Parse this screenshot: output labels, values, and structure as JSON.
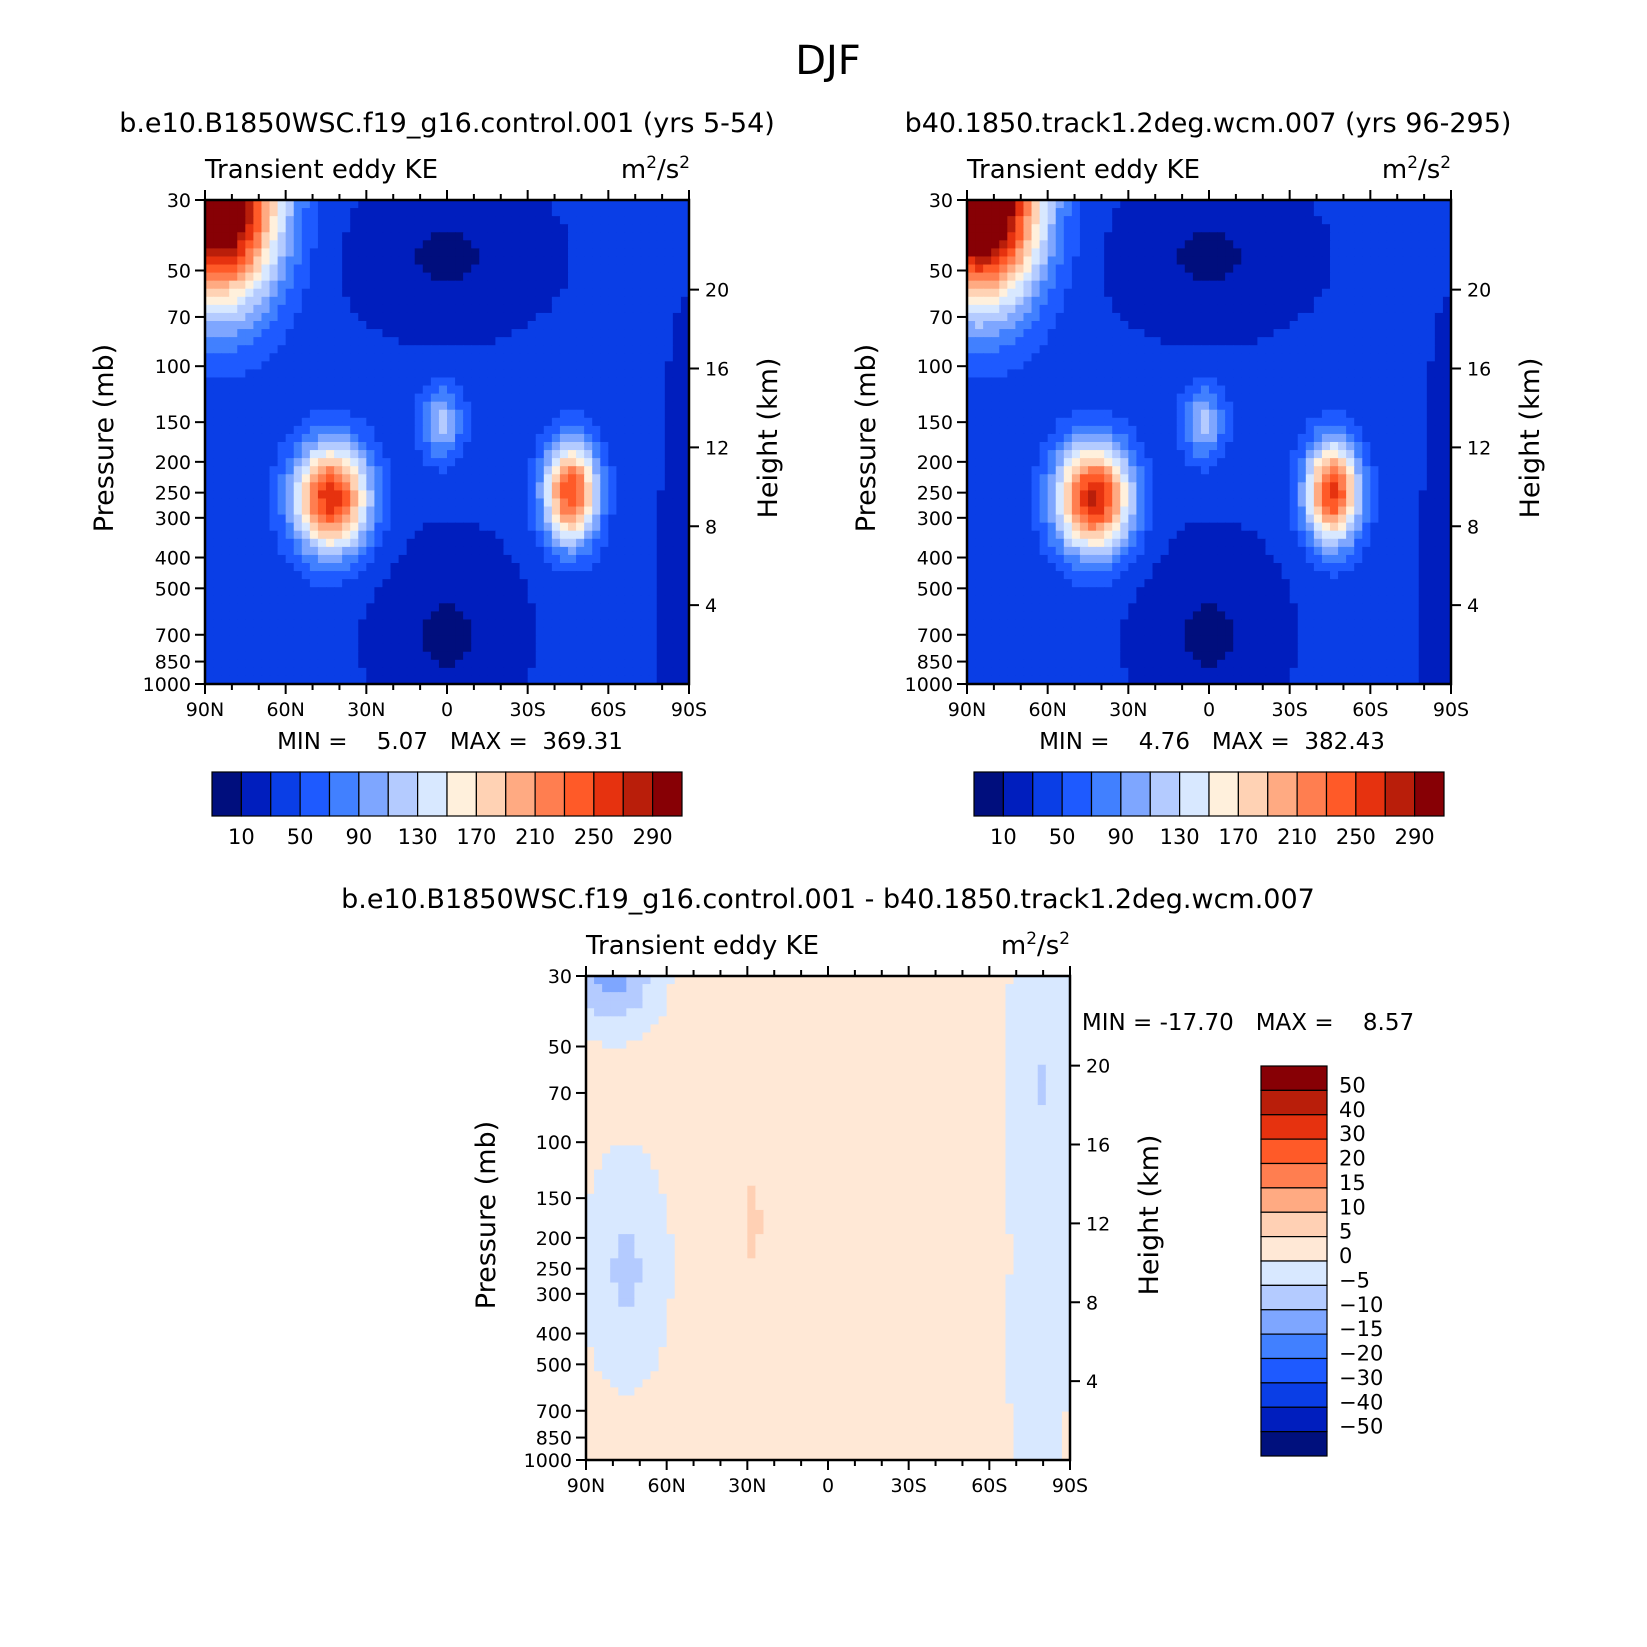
{
  "figure": {
    "title": "DJF"
  },
  "colors": {
    "absolute_scale": [
      "#000e7d",
      "#001ebe",
      "#0a3ee6",
      "#1e5aff",
      "#4180ff",
      "#7ea6ff",
      "#b4cbff",
      "#d8e8ff",
      "#fff0dc",
      "#ffd2b4",
      "#ffaa82",
      "#ff7e50",
      "#ff5a28",
      "#e6320f",
      "#b91e0a",
      "#870005"
    ],
    "difference_scale": [
      "#00107d",
      "#001ebe",
      "#0a3ee6",
      "#1e5aff",
      "#4180ff",
      "#7ea6ff",
      "#b4cbff",
      "#d8e8ff",
      "#ffe8d6",
      "#ffd0b4",
      "#ffaa82",
      "#ff7e50",
      "#ff5a28",
      "#e6320f",
      "#b91e0a",
      "#870005"
    ],
    "no_data": "#ffffff"
  },
  "chart_data": [
    {
      "type": "heatmap",
      "title": "b.e10.B1850WSC.f19_g16.control.001 (yrs 5-54)",
      "subtitle_left": "Transient eddy KE",
      "subtitle_right": "m",
      "units_exp1": "2",
      "units_mid": "/s",
      "units_exp2": "2",
      "xlabel": "",
      "ylabel": "Pressure (mb)",
      "ylabel_right": "Height (km)",
      "x_ticks": [
        "90N",
        "60N",
        "30N",
        "0",
        "30S",
        "60S",
        "90S"
      ],
      "x_range": [
        90,
        -90
      ],
      "y_ticks": [
        "30",
        "50",
        "70",
        "100",
        "150",
        "200",
        "250",
        "300",
        "400",
        "500",
        "700",
        "850",
        "1000"
      ],
      "y_tick_values": [
        30,
        50,
        70,
        100,
        150,
        200,
        250,
        300,
        400,
        500,
        700,
        850,
        1000
      ],
      "y_range": [
        30,
        1000
      ],
      "y_scale": "log",
      "height_ticks": [
        "20",
        "16",
        "12",
        "8",
        "4"
      ],
      "height_tick_values": [
        20,
        16,
        12,
        8,
        4
      ],
      "stats": "MIN =    5.07   MAX =  369.31",
      "min": 5.07,
      "max": 369.31,
      "contour_levels": [
        10,
        30,
        50,
        70,
        90,
        110,
        130,
        150,
        170,
        190,
        210,
        230,
        250,
        270,
        290
      ],
      "colorbar_labels": [
        "10",
        "50",
        "90",
        "130",
        "170",
        "210",
        "250",
        "290"
      ],
      "colorbar_orientation": "horizontal"
    },
    {
      "type": "heatmap",
      "title": "b40.1850.track1.2deg.wcm.007 (yrs 96-295)",
      "subtitle_left": "Transient eddy KE",
      "subtitle_right": "m",
      "units_exp1": "2",
      "units_mid": "/s",
      "units_exp2": "2",
      "xlabel": "",
      "ylabel": "Pressure (mb)",
      "ylabel_right": "Height (km)",
      "x_ticks": [
        "90N",
        "60N",
        "30N",
        "0",
        "30S",
        "60S",
        "90S"
      ],
      "x_range": [
        90,
        -90
      ],
      "y_ticks": [
        "30",
        "50",
        "70",
        "100",
        "150",
        "200",
        "250",
        "300",
        "400",
        "500",
        "700",
        "850",
        "1000"
      ],
      "y_tick_values": [
        30,
        50,
        70,
        100,
        150,
        200,
        250,
        300,
        400,
        500,
        700,
        850,
        1000
      ],
      "y_range": [
        30,
        1000
      ],
      "y_scale": "log",
      "height_ticks": [
        "20",
        "16",
        "12",
        "8",
        "4"
      ],
      "height_tick_values": [
        20,
        16,
        12,
        8,
        4
      ],
      "stats": "MIN =    4.76   MAX =  382.43",
      "min": 4.76,
      "max": 382.43,
      "contour_levels": [
        10,
        30,
        50,
        70,
        90,
        110,
        130,
        150,
        170,
        190,
        210,
        230,
        250,
        270,
        290
      ],
      "colorbar_labels": [
        "10",
        "50",
        "90",
        "130",
        "170",
        "210",
        "250",
        "290"
      ],
      "colorbar_orientation": "horizontal"
    },
    {
      "type": "heatmap",
      "title": "b.e10.B1850WSC.f19_g16.control.001 - b40.1850.track1.2deg.wcm.007",
      "subtitle_left": "Transient eddy KE",
      "subtitle_right": "m",
      "units_exp1": "2",
      "units_mid": "/s",
      "units_exp2": "2",
      "xlabel": "",
      "ylabel": "Pressure (mb)",
      "ylabel_right": "Height (km)",
      "x_ticks": [
        "90N",
        "60N",
        "30N",
        "0",
        "30S",
        "60S",
        "90S"
      ],
      "x_range": [
        90,
        -90
      ],
      "y_ticks": [
        "30",
        "50",
        "70",
        "100",
        "150",
        "200",
        "250",
        "300",
        "400",
        "500",
        "700",
        "850",
        "1000"
      ],
      "y_tick_values": [
        30,
        50,
        70,
        100,
        150,
        200,
        250,
        300,
        400,
        500,
        700,
        850,
        1000
      ],
      "y_range": [
        30,
        1000
      ],
      "y_scale": "log",
      "height_ticks": [
        "20",
        "16",
        "12",
        "8",
        "4"
      ],
      "height_tick_values": [
        20,
        16,
        12,
        8,
        4
      ],
      "stats": "MIN = -17.70   MAX =    8.57",
      "min": -17.7,
      "max": 8.57,
      "contour_levels": [
        -50,
        -40,
        -30,
        -20,
        -15,
        -10,
        -5,
        0,
        5,
        10,
        15,
        20,
        30,
        40,
        50
      ],
      "colorbar_labels": [
        "50",
        "40",
        "30",
        "20",
        "15",
        "10",
        "5",
        "0",
        "-5",
        "-10",
        "-15",
        "-20",
        "-30",
        "-40",
        "-50"
      ],
      "colorbar_orientation": "vertical"
    }
  ]
}
